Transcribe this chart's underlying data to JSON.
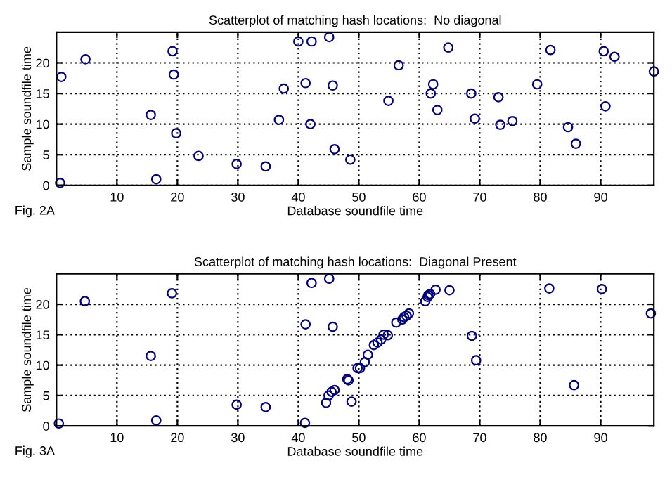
{
  "chart_data": [
    {
      "type": "scatter",
      "title": "Scatterplot of matching hash locations:  No diagonal",
      "xlabel": "Database soundfile time",
      "ylabel": "Sample soundfile time",
      "annotations": [
        "Fig. 2A"
      ],
      "xlim": [
        0,
        98.8
      ],
      "ylim": [
        0,
        25
      ],
      "xticks": [
        10,
        20,
        30,
        40,
        50,
        60,
        70,
        80,
        90
      ],
      "yticks": [
        0,
        5,
        10,
        15,
        20
      ],
      "grid": true,
      "marker": "circle",
      "legend": false,
      "series": [
        {
          "color": "#000080",
          "x": [
            0.8,
            0.6,
            4.8,
            15.6,
            16.5,
            19.2,
            19.4,
            19.8,
            23.5,
            29.8,
            34.6,
            36.8,
            37.6,
            40,
            41.2,
            42,
            42.2,
            45.1,
            45.7,
            46,
            48.6,
            54.9,
            56.6,
            62.3,
            61.9,
            63,
            64.8,
            68.6,
            69.2,
            73.1,
            73.4,
            75.4,
            79.5,
            81.7,
            84.6,
            85.9,
            90.5,
            90.8,
            92.3,
            98.8
          ],
          "values": [
            17.7,
            0.4,
            20.6,
            11.5,
            1.0,
            21.9,
            18.1,
            8.5,
            4.8,
            3.5,
            3.1,
            10.7,
            15.8,
            23.5,
            16.7,
            10,
            23.5,
            24.2,
            16.3,
            5.9,
            4.2,
            13.8,
            19.6,
            16.5,
            15,
            12.3,
            22.5,
            15,
            10.9,
            14.4,
            9.9,
            10.5,
            16.5,
            22.1,
            9.5,
            6.8,
            21.9,
            12.9,
            21,
            18.6
          ]
        }
      ]
    },
    {
      "type": "scatter",
      "title": "Scatterplot of matching hash locations:  Diagonal Present",
      "xlabel": "Database soundfile time",
      "ylabel": "Sample soundfile time",
      "annotations": [
        "Fig. 3A"
      ],
      "xlim": [
        0,
        98.8
      ],
      "ylim": [
        0,
        25
      ],
      "xticks": [
        10,
        20,
        30,
        40,
        50,
        60,
        70,
        80,
        90
      ],
      "yticks": [
        0,
        5,
        10,
        15,
        20
      ],
      "grid": true,
      "marker": "circle",
      "legend": false,
      "series": [
        {
          "color": "#000080",
          "x": [
            0.4,
            4.7,
            15.6,
            16.5,
            19.1,
            29.8,
            34.6,
            41.1,
            41.2,
            42.2,
            45.1,
            45.7,
            46,
            44.6,
            45,
            45.5,
            48.1,
            48.3,
            48.8,
            49.8,
            50.2,
            51,
            51.5,
            52.5,
            53.1,
            53.7,
            54.1,
            54.8,
            56.2,
            57.2,
            57.5,
            57.9,
            58.3,
            61,
            61.4,
            61.5,
            61.8,
            62.7,
            65,
            68.7,
            69.4,
            81.5,
            85.6,
            90.2,
            98.3
          ],
          "values": [
            0.4,
            20.5,
            11.5,
            0.9,
            21.8,
            3.5,
            3.1,
            0.5,
            16.7,
            23.5,
            24.2,
            16.3,
            5.9,
            3.8,
            5,
            5.6,
            7.7,
            7.5,
            4,
            9.5,
            9.5,
            10.5,
            11.7,
            13.3,
            13.7,
            14.2,
            15,
            14.9,
            17,
            17.5,
            17.9,
            18.1,
            18.5,
            20.5,
            21.2,
            21.5,
            21.7,
            22.4,
            22.3,
            14.8,
            10.8,
            22.6,
            6.7,
            22.5,
            18.5
          ]
        }
      ]
    }
  ]
}
